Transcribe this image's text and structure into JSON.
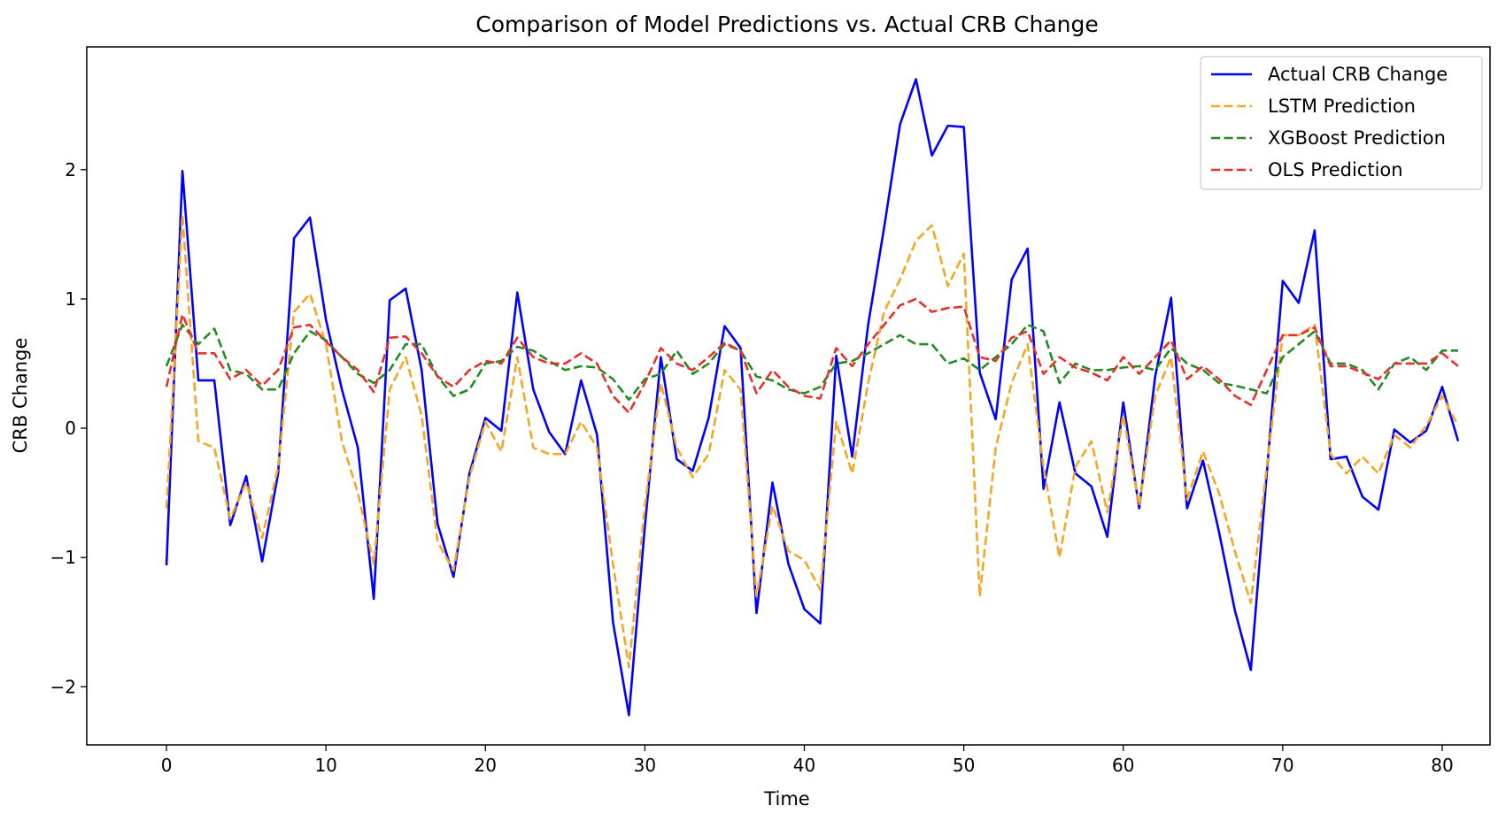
{
  "chart_data": {
    "type": "line",
    "title": "Comparison of Model Predictions vs. Actual CRB Change",
    "xlabel": "Time",
    "ylabel": "CRB Change",
    "xlim": [
      -5,
      83
    ],
    "ylim": [
      -2.45,
      2.95
    ],
    "xticks": [
      0,
      10,
      20,
      30,
      40,
      50,
      60,
      70,
      80
    ],
    "yticks": [
      -2,
      -1,
      0,
      1,
      2
    ],
    "ytick_labels": [
      "−2",
      "−1",
      "0",
      "1",
      "2"
    ],
    "grid": false,
    "legend_position": "top-right",
    "series": [
      {
        "name": "Actual CRB Change",
        "color": "#0000ff",
        "style": "solid",
        "values": [
          -1.06,
          1.99,
          0.37,
          0.37,
          -0.75,
          -0.37,
          -1.03,
          -0.35,
          1.47,
          1.63,
          0.84,
          0.3,
          -0.15,
          -1.32,
          0.99,
          1.08,
          0.45,
          -0.74,
          -1.15,
          -0.35,
          0.08,
          -0.02,
          1.05,
          0.3,
          -0.03,
          -0.2,
          0.37,
          -0.05,
          -1.5,
          -2.22,
          -0.76,
          0.55,
          -0.24,
          -0.33,
          0.08,
          0.79,
          0.62,
          -1.43,
          -0.42,
          -1.05,
          -1.4,
          -1.51,
          0.56,
          -0.22,
          0.8,
          1.55,
          2.35,
          2.7,
          2.11,
          2.34,
          2.33,
          0.43,
          0.07,
          1.15,
          1.39,
          -0.47,
          0.2,
          -0.35,
          -0.45,
          -0.84,
          0.2,
          -0.62,
          0.4,
          1.01,
          -0.62,
          -0.25,
          -0.8,
          -1.41,
          -1.87,
          -0.35,
          1.14,
          0.97,
          1.53,
          -0.24,
          -0.22,
          -0.53,
          -0.63,
          -0.01,
          -0.11,
          -0.02,
          0.32,
          -0.1
        ]
      },
      {
        "name": "LSTM Prediction",
        "color": "#f5a623",
        "style": "dashed",
        "values": [
          -0.62,
          1.65,
          -0.1,
          -0.15,
          -0.7,
          -0.42,
          -0.85,
          -0.3,
          0.9,
          1.04,
          0.65,
          -0.1,
          -0.5,
          -1.05,
          0.3,
          0.55,
          0.1,
          -0.88,
          -1.1,
          -0.38,
          0.05,
          -0.18,
          0.55,
          -0.15,
          -0.2,
          -0.2,
          0.05,
          -0.15,
          -1.05,
          -1.85,
          -0.6,
          0.35,
          -0.15,
          -0.38,
          -0.2,
          0.45,
          0.3,
          -1.3,
          -0.6,
          -0.95,
          -1.02,
          -1.25,
          0.05,
          -0.35,
          0.35,
          0.9,
          1.15,
          1.45,
          1.57,
          1.1,
          1.35,
          -1.3,
          -0.15,
          0.35,
          0.65,
          -0.3,
          -1.0,
          -0.3,
          -0.1,
          -0.65,
          0.1,
          -0.6,
          0.25,
          0.55,
          -0.55,
          -0.18,
          -0.5,
          -0.95,
          -1.35,
          -0.3,
          0.72,
          0.72,
          0.8,
          -0.2,
          -0.35,
          -0.22,
          -0.35,
          -0.05,
          -0.15,
          0.02,
          0.25,
          0.02
        ]
      },
      {
        "name": "XGBoost Prediction",
        "color": "#228b22",
        "style": "dashed",
        "values": [
          0.48,
          0.8,
          0.65,
          0.77,
          0.45,
          0.42,
          0.3,
          0.3,
          0.58,
          0.75,
          0.68,
          0.55,
          0.42,
          0.35,
          0.45,
          0.65,
          0.65,
          0.4,
          0.25,
          0.3,
          0.5,
          0.52,
          0.63,
          0.6,
          0.52,
          0.45,
          0.48,
          0.47,
          0.38,
          0.22,
          0.38,
          0.42,
          0.6,
          0.42,
          0.5,
          0.65,
          0.6,
          0.4,
          0.37,
          0.3,
          0.27,
          0.32,
          0.5,
          0.52,
          0.58,
          0.65,
          0.72,
          0.65,
          0.65,
          0.5,
          0.54,
          0.45,
          0.55,
          0.65,
          0.8,
          0.75,
          0.35,
          0.5,
          0.45,
          0.45,
          0.47,
          0.48,
          0.45,
          0.62,
          0.5,
          0.45,
          0.35,
          0.33,
          0.3,
          0.27,
          0.55,
          0.65,
          0.75,
          0.5,
          0.5,
          0.45,
          0.3,
          0.5,
          0.55,
          0.45,
          0.6,
          0.6
        ]
      },
      {
        "name": "OLS Prediction",
        "color": "#e8302b",
        "style": "dashed",
        "values": [
          0.32,
          0.88,
          0.58,
          0.58,
          0.38,
          0.45,
          0.33,
          0.45,
          0.78,
          0.8,
          0.67,
          0.55,
          0.45,
          0.28,
          0.7,
          0.71,
          0.58,
          0.4,
          0.32,
          0.45,
          0.52,
          0.5,
          0.7,
          0.55,
          0.5,
          0.5,
          0.58,
          0.5,
          0.25,
          0.12,
          0.35,
          0.62,
          0.5,
          0.45,
          0.55,
          0.66,
          0.6,
          0.27,
          0.45,
          0.32,
          0.25,
          0.23,
          0.62,
          0.48,
          0.65,
          0.8,
          0.95,
          1.0,
          0.9,
          0.93,
          0.94,
          0.55,
          0.52,
          0.7,
          0.75,
          0.42,
          0.55,
          0.47,
          0.43,
          0.37,
          0.55,
          0.42,
          0.55,
          0.68,
          0.38,
          0.48,
          0.38,
          0.25,
          0.18,
          0.45,
          0.72,
          0.72,
          0.78,
          0.48,
          0.48,
          0.43,
          0.38,
          0.5,
          0.5,
          0.5,
          0.58,
          0.48
        ]
      }
    ]
  }
}
